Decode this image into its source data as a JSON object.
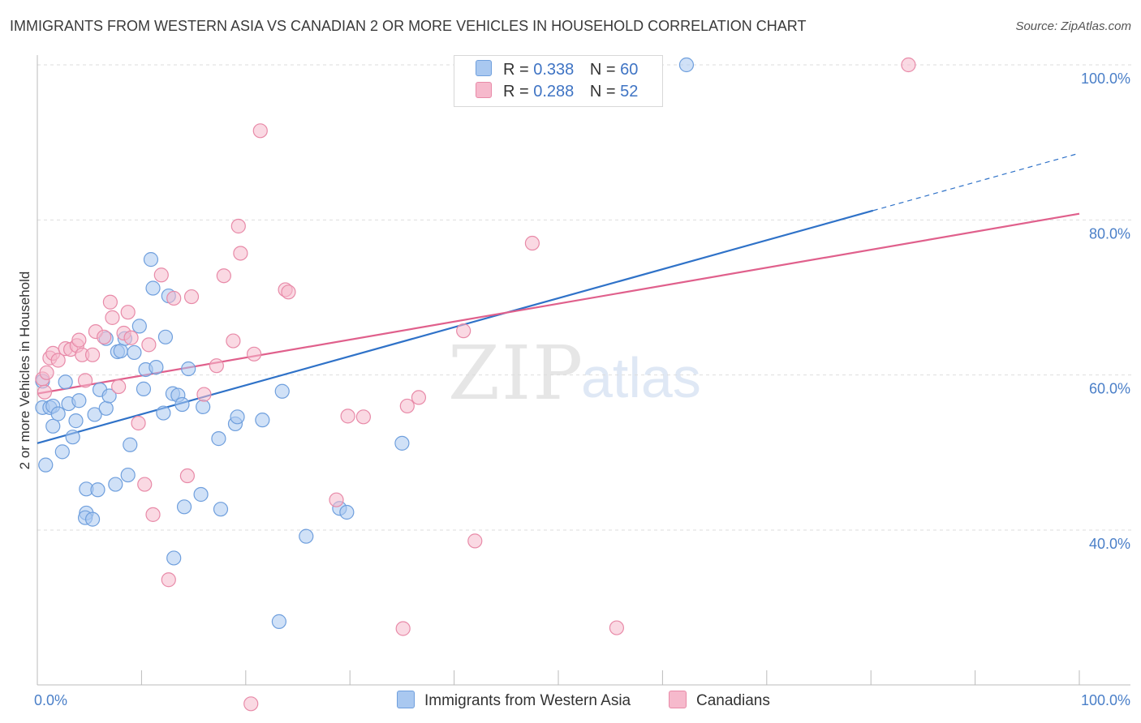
{
  "title": "IMMIGRANTS FROM WESTERN ASIA VS CANADIAN 2 OR MORE VEHICLES IN HOUSEHOLD CORRELATION CHART",
  "source": "Source: ZipAtlas.com",
  "watermark": {
    "zip": "ZIP",
    "atlas": "atlas"
  },
  "legend_top": [
    {
      "r_label": "R =",
      "r_value": "0.338",
      "n_label": "N =",
      "n_value": "60"
    },
    {
      "r_label": "R =",
      "r_value": "0.288",
      "n_label": "N =",
      "n_value": "52"
    }
  ],
  "colors": {
    "blue_fill": "#a9c8f0",
    "blue_stroke": "#6f9fdd",
    "blue_line": "#2f72c8",
    "pink_fill": "#f6b9cc",
    "pink_stroke": "#e88aa8",
    "pink_line": "#e0608c",
    "tick_text": "#4a7fc8",
    "grid": "#dddddd"
  },
  "chart_data": {
    "type": "scatter",
    "ylabel": "2 or more Vehicles in Household",
    "xlabel": "",
    "x_tick_labels": [
      "0.0%",
      "100.0%"
    ],
    "y_tick_labels": [
      "40.0%",
      "60.0%",
      "80.0%",
      "100.0%"
    ],
    "y_ticks": [
      40,
      60,
      80,
      100
    ],
    "xlim": [
      0,
      100
    ],
    "ylim": [
      20,
      102
    ],
    "grid": true,
    "series": [
      {
        "name": "Immigrants from Western Asia",
        "color": "blue",
        "trend": {
          "x0": 0,
          "y0": 51.2,
          "x1": 80.2,
          "y1": 81.2,
          "dash_to_x": 100,
          "dash_to_y": 88.6
        },
        "points": [
          [
            0.5,
            55.8
          ],
          [
            0.8,
            48.4
          ],
          [
            0.5,
            59.2
          ],
          [
            1.2,
            55.8
          ],
          [
            1.5,
            53.4
          ],
          [
            1.5,
            56.0
          ],
          [
            2.0,
            55.0
          ],
          [
            2.4,
            50.1
          ],
          [
            2.7,
            59.1
          ],
          [
            3.0,
            56.3
          ],
          [
            3.4,
            52.0
          ],
          [
            3.7,
            54.1
          ],
          [
            4.0,
            56.7
          ],
          [
            4.7,
            42.2
          ],
          [
            4.6,
            41.6
          ],
          [
            4.7,
            45.3
          ],
          [
            5.3,
            41.4
          ],
          [
            5.5,
            54.9
          ],
          [
            5.8,
            45.2
          ],
          [
            6.0,
            58.1
          ],
          [
            6.6,
            55.7
          ],
          [
            6.6,
            64.7
          ],
          [
            6.9,
            57.3
          ],
          [
            7.5,
            45.9
          ],
          [
            7.7,
            63.0
          ],
          [
            8.0,
            63.1
          ],
          [
            8.4,
            64.7
          ],
          [
            8.7,
            47.1
          ],
          [
            8.9,
            51.0
          ],
          [
            9.3,
            62.9
          ],
          [
            9.8,
            66.3
          ],
          [
            10.2,
            58.2
          ],
          [
            10.4,
            60.7
          ],
          [
            10.9,
            74.9
          ],
          [
            11.1,
            71.2
          ],
          [
            11.4,
            61.0
          ],
          [
            12.1,
            55.1
          ],
          [
            12.3,
            64.9
          ],
          [
            12.6,
            70.2
          ],
          [
            13.0,
            57.6
          ],
          [
            13.1,
            36.4
          ],
          [
            13.5,
            57.4
          ],
          [
            13.9,
            56.2
          ],
          [
            14.1,
            43.0
          ],
          [
            14.5,
            60.8
          ],
          [
            15.7,
            44.6
          ],
          [
            15.9,
            55.9
          ],
          [
            17.4,
            51.8
          ],
          [
            17.6,
            42.7
          ],
          [
            19.0,
            53.7
          ],
          [
            19.2,
            54.6
          ],
          [
            21.6,
            54.2
          ],
          [
            23.2,
            28.2
          ],
          [
            23.5,
            57.9
          ],
          [
            25.8,
            39.2
          ],
          [
            29.0,
            42.8
          ],
          [
            29.7,
            42.3
          ],
          [
            35.0,
            51.2
          ],
          [
            42.7,
            100.0
          ],
          [
            62.3,
            100.0
          ]
        ]
      },
      {
        "name": "Canadians",
        "color": "pink",
        "trend": {
          "x0": 0,
          "y0": 57.6,
          "x1": 100,
          "y1": 80.8
        },
        "points": [
          [
            0.5,
            59.5
          ],
          [
            0.7,
            57.8
          ],
          [
            0.9,
            60.3
          ],
          [
            1.2,
            62.2
          ],
          [
            1.5,
            62.8
          ],
          [
            2.0,
            61.9
          ],
          [
            2.7,
            63.4
          ],
          [
            3.2,
            63.3
          ],
          [
            3.8,
            63.8
          ],
          [
            4.0,
            64.5
          ],
          [
            4.3,
            62.6
          ],
          [
            4.6,
            59.3
          ],
          [
            5.3,
            62.6
          ],
          [
            5.6,
            65.6
          ],
          [
            6.4,
            64.9
          ],
          [
            7.0,
            69.4
          ],
          [
            7.2,
            67.4
          ],
          [
            7.8,
            58.5
          ],
          [
            8.3,
            65.4
          ],
          [
            8.7,
            68.1
          ],
          [
            9.0,
            64.8
          ],
          [
            9.7,
            53.8
          ],
          [
            10.3,
            45.9
          ],
          [
            10.7,
            63.9
          ],
          [
            11.1,
            42.0
          ],
          [
            11.9,
            72.9
          ],
          [
            12.6,
            33.6
          ],
          [
            13.1,
            69.9
          ],
          [
            14.4,
            47.0
          ],
          [
            14.8,
            70.1
          ],
          [
            16.0,
            57.5
          ],
          [
            17.2,
            61.2
          ],
          [
            17.9,
            72.8
          ],
          [
            18.8,
            64.4
          ],
          [
            19.3,
            79.2
          ],
          [
            19.5,
            75.7
          ],
          [
            20.5,
            17.6
          ],
          [
            20.8,
            62.7
          ],
          [
            21.4,
            91.5
          ],
          [
            23.8,
            71.0
          ],
          [
            24.1,
            70.7
          ],
          [
            28.7,
            43.9
          ],
          [
            29.8,
            54.7
          ],
          [
            31.3,
            54.6
          ],
          [
            35.1,
            27.3
          ],
          [
            35.5,
            56.0
          ],
          [
            36.6,
            57.1
          ],
          [
            40.9,
            65.7
          ],
          [
            42.0,
            38.6
          ],
          [
            47.5,
            77.0
          ],
          [
            55.6,
            27.4
          ],
          [
            83.6,
            100.0
          ]
        ]
      }
    ]
  },
  "legend_bottom": [
    "Immigrants from Western Asia",
    "Canadians"
  ]
}
